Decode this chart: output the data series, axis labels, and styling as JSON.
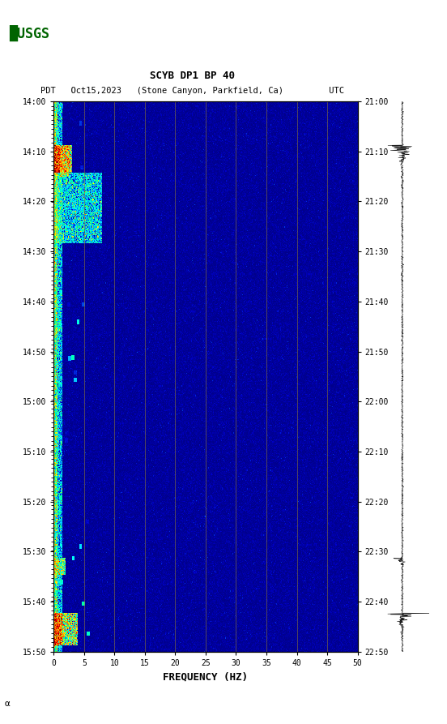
{
  "title_line1": "SCYB DP1 BP 40",
  "title_line2": "PDT   Oct15,2023   (Stone Canyon, Parkfield, Ca)         UTC",
  "xlabel": "FREQUENCY (HZ)",
  "freq_ticks": [
    0,
    5,
    10,
    15,
    20,
    25,
    30,
    35,
    40,
    45,
    50
  ],
  "freq_gridlines": [
    5,
    10,
    15,
    20,
    25,
    30,
    35,
    40,
    45
  ],
  "time_labels_left": [
    "14:00",
    "14:10",
    "14:20",
    "14:30",
    "14:40",
    "14:50",
    "15:00",
    "15:10",
    "15:20",
    "15:30",
    "15:40",
    "15:50"
  ],
  "time_labels_right": [
    "21:00",
    "21:10",
    "21:20",
    "21:30",
    "21:40",
    "21:50",
    "22:00",
    "22:10",
    "22:20",
    "22:30",
    "22:40",
    "22:50"
  ],
  "fig_bg": "#ffffff",
  "usgs_green": "#006400"
}
